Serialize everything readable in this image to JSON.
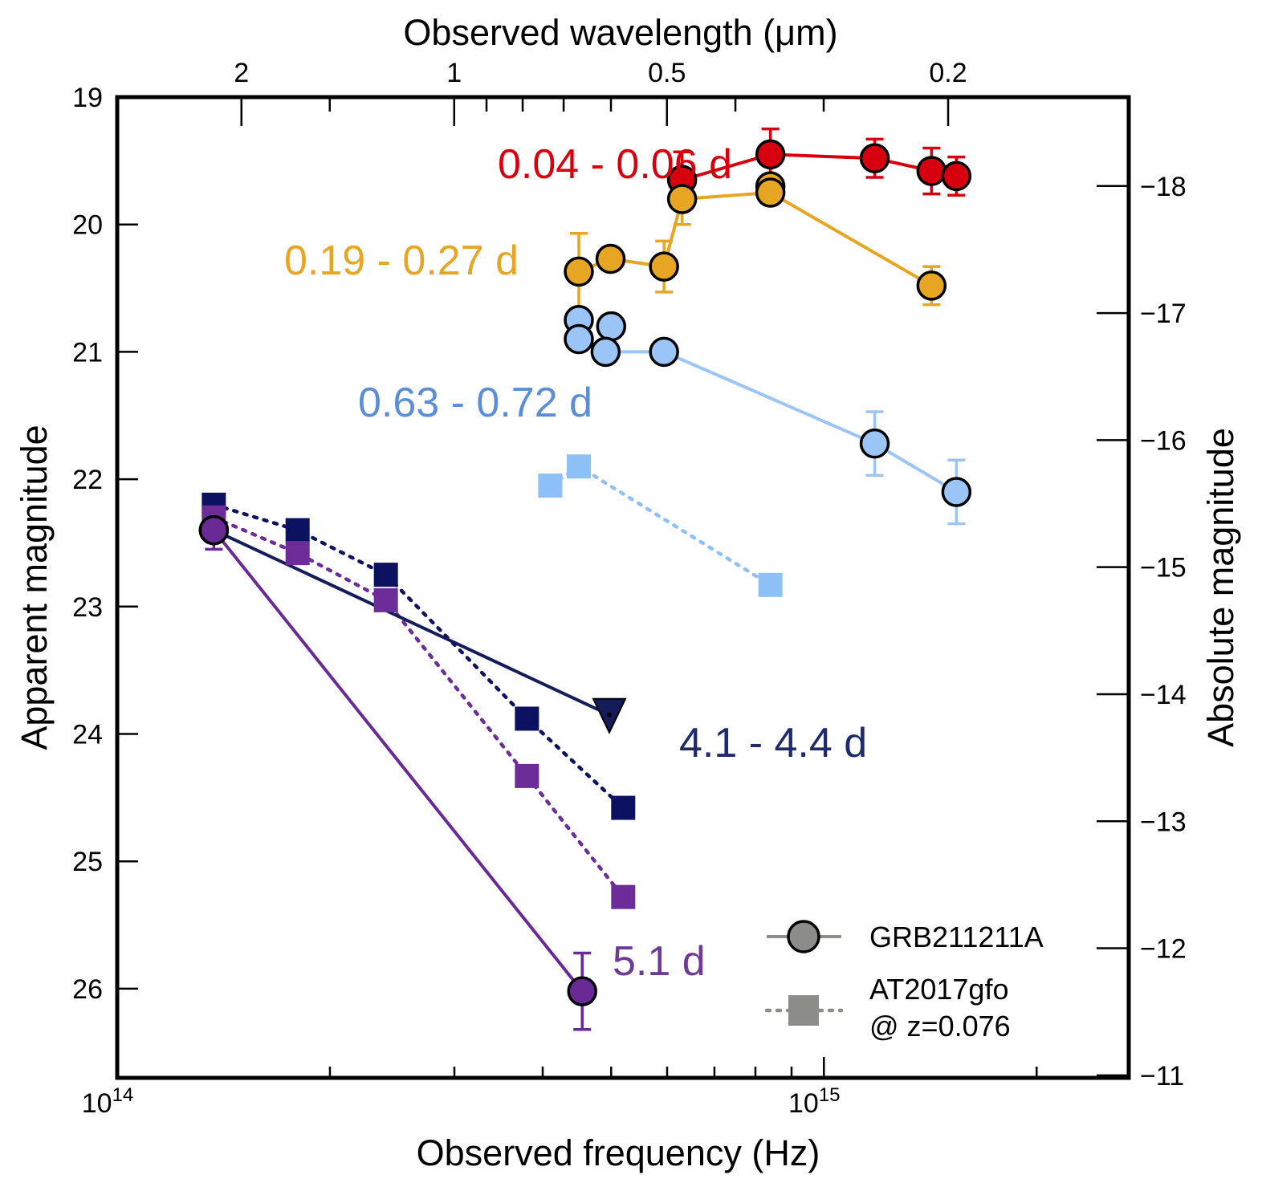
{
  "chart_data": {
    "type": "scatter",
    "title": "",
    "xlabel": "Observed frequency (Hz)",
    "x_top_label": "Observed wavelength (μm)",
    "ylabel": "Apparent magnitude",
    "y_right_label": "Absolute magnitude",
    "x_scale": "log",
    "xlim": [
      100000000000000.0,
      2700000000000000.0
    ],
    "ylim": [
      26.7,
      19.0
    ],
    "y_right_lim": [
      -10.98,
      -18.7
    ],
    "x_ticks": [
      {
        "value": 100000000000000.0,
        "base": "10",
        "exp": "14"
      },
      {
        "value": 1000000000000000.0,
        "base": "10",
        "exp": "15"
      }
    ],
    "y_ticks": [
      "19",
      "20",
      "21",
      "22",
      "23",
      "24",
      "25",
      "26"
    ],
    "y_right_ticks": [
      "−18",
      "−17",
      "−16",
      "−15",
      "−14",
      "−13",
      "−12",
      "−11"
    ],
    "x_top_ticks": [
      {
        "value_um": 2,
        "label": "2"
      },
      {
        "value_um": 1,
        "label": "1"
      },
      {
        "value_um": 0.5,
        "label": "0.5"
      },
      {
        "value_um": 0.2,
        "label": "0.2"
      }
    ],
    "series": [
      {
        "name": "GRB211211A 0.04 - 0.06 d",
        "label": "0.04 - 0.06 d",
        "object": "GRB211211A",
        "color": "#d7000f",
        "marker": "circle",
        "line": "solid",
        "points": [
          {
            "x": 630000000000000.0,
            "y": 19.65,
            "err": 0.22
          },
          {
            "x": 840000000000000.0,
            "y": 19.45,
            "err": 0.2
          },
          {
            "x": 1180000000000000.0,
            "y": 19.48,
            "err": 0.15
          },
          {
            "x": 1420000000000000.0,
            "y": 19.58,
            "err": 0.18
          },
          {
            "x": 1540000000000000.0,
            "y": 19.62,
            "err": 0.15
          }
        ]
      },
      {
        "name": "GRB211211A 0.19 - 0.27 d",
        "label": "0.19 - 0.27 d",
        "object": "GRB211211A",
        "color": "#e6a623",
        "marker": "circle",
        "line": "solid",
        "extra_points": [
          {
            "x": 840000000000000.0,
            "y": 19.7
          }
        ],
        "points": [
          {
            "x": 450000000000000.0,
            "y": 20.37,
            "err": 0.3
          },
          {
            "x": 499000000000000.0,
            "y": 20.27,
            "err": 0
          },
          {
            "x": 594000000000000.0,
            "y": 20.33,
            "err": 0.2
          },
          {
            "x": 630000000000000.0,
            "y": 19.8,
            "err": 0.2
          },
          {
            "x": 840000000000000.0,
            "y": 19.75,
            "err": 0
          },
          {
            "x": 1420000000000000.0,
            "y": 20.48,
            "err": 0.15
          }
        ]
      },
      {
        "name": "GRB211211A 0.63 - 0.72 d",
        "label": "0.63 - 0.72 d",
        "object": "GRB211211A",
        "color": "#9bc5f6",
        "label_color": "#5b8ed6",
        "marker": "circle",
        "line": "solid",
        "extra_points": [
          {
            "x": 450000000000000.0,
            "y": 20.75
          },
          {
            "x": 500000000000000.0,
            "y": 20.8
          }
        ],
        "points": [
          {
            "x": 450000000000000.0,
            "y": 20.9,
            "err": 0
          },
          {
            "x": 491000000000000.0,
            "y": 21.0,
            "err": 0
          },
          {
            "x": 594000000000000.0,
            "y": 21.0,
            "err": 0
          },
          {
            "x": 1180000000000000.0,
            "y": 21.72,
            "err": 0.25
          },
          {
            "x": 1540000000000000.0,
            "y": 22.1,
            "err": 0.25
          }
        ]
      },
      {
        "name": "GRB211211A 4.1 - 4.4 d",
        "label": "4.1 - 4.4 d",
        "object": "GRB211211A",
        "color": "#141c5a",
        "label_color": "#1f2a6a",
        "marker": "circle",
        "line": "solid",
        "points": [
          {
            "x": 137000000000000.0,
            "y": 22.4,
            "err": 0
          },
          {
            "x": 497000000000000.0,
            "y": 23.85,
            "err": 0,
            "upper_limit": true
          }
        ]
      },
      {
        "name": "GRB211211A 5.1 d",
        "label": "5.1 d",
        "object": "GRB211211A",
        "color": "#6a2a95",
        "label_color": "#6e3a96",
        "marker": "circle",
        "line": "solid",
        "points": [
          {
            "x": 137000000000000.0,
            "y": 22.4,
            "err": 0.15
          },
          {
            "x": 455000000000000.0,
            "y": 26.02,
            "err": 0.3
          }
        ]
      },
      {
        "name": "AT2017gfo 0.63 - 0.72 d",
        "object": "AT2017gfo",
        "color": "#8ec0f8",
        "marker": "square",
        "line": "dotted",
        "points": [
          {
            "x": 410000000000000.0,
            "y": 22.05
          },
          {
            "x": 450000000000000.0,
            "y": 21.9
          },
          {
            "x": 840000000000000.0,
            "y": 22.83
          }
        ]
      },
      {
        "name": "AT2017gfo 4.1 - 4.4 d",
        "object": "AT2017gfo",
        "color": "#0c1260",
        "marker": "square",
        "line": "dotted",
        "points": [
          {
            "x": 137000000000000.0,
            "y": 22.2
          },
          {
            "x": 180000000000000.0,
            "y": 22.4
          },
          {
            "x": 240000000000000.0,
            "y": 22.75
          },
          {
            "x": 380000000000000.0,
            "y": 23.88
          },
          {
            "x": 520000000000000.0,
            "y": 24.58
          }
        ]
      },
      {
        "name": "AT2017gfo 5.1 d",
        "object": "AT2017gfo",
        "color": "#6d2d99",
        "marker": "square",
        "line": "dotted",
        "points": [
          {
            "x": 137000000000000.0,
            "y": 22.3
          },
          {
            "x": 180000000000000.0,
            "y": 22.58
          },
          {
            "x": 240000000000000.0,
            "y": 22.95
          },
          {
            "x": 380000000000000.0,
            "y": 24.33
          },
          {
            "x": 520000000000000.0,
            "y": 25.28
          }
        ]
      }
    ],
    "legend": {
      "position": "bottom-right",
      "entries": [
        {
          "label": "GRB211211A",
          "marker": "circle",
          "line": "solid",
          "color": "#8c8c88"
        },
        {
          "label": "AT2017gfo",
          "label_line2": "@ z=0.076",
          "marker": "square",
          "line": "dotted",
          "color": "#8c8c88"
        }
      ]
    }
  }
}
